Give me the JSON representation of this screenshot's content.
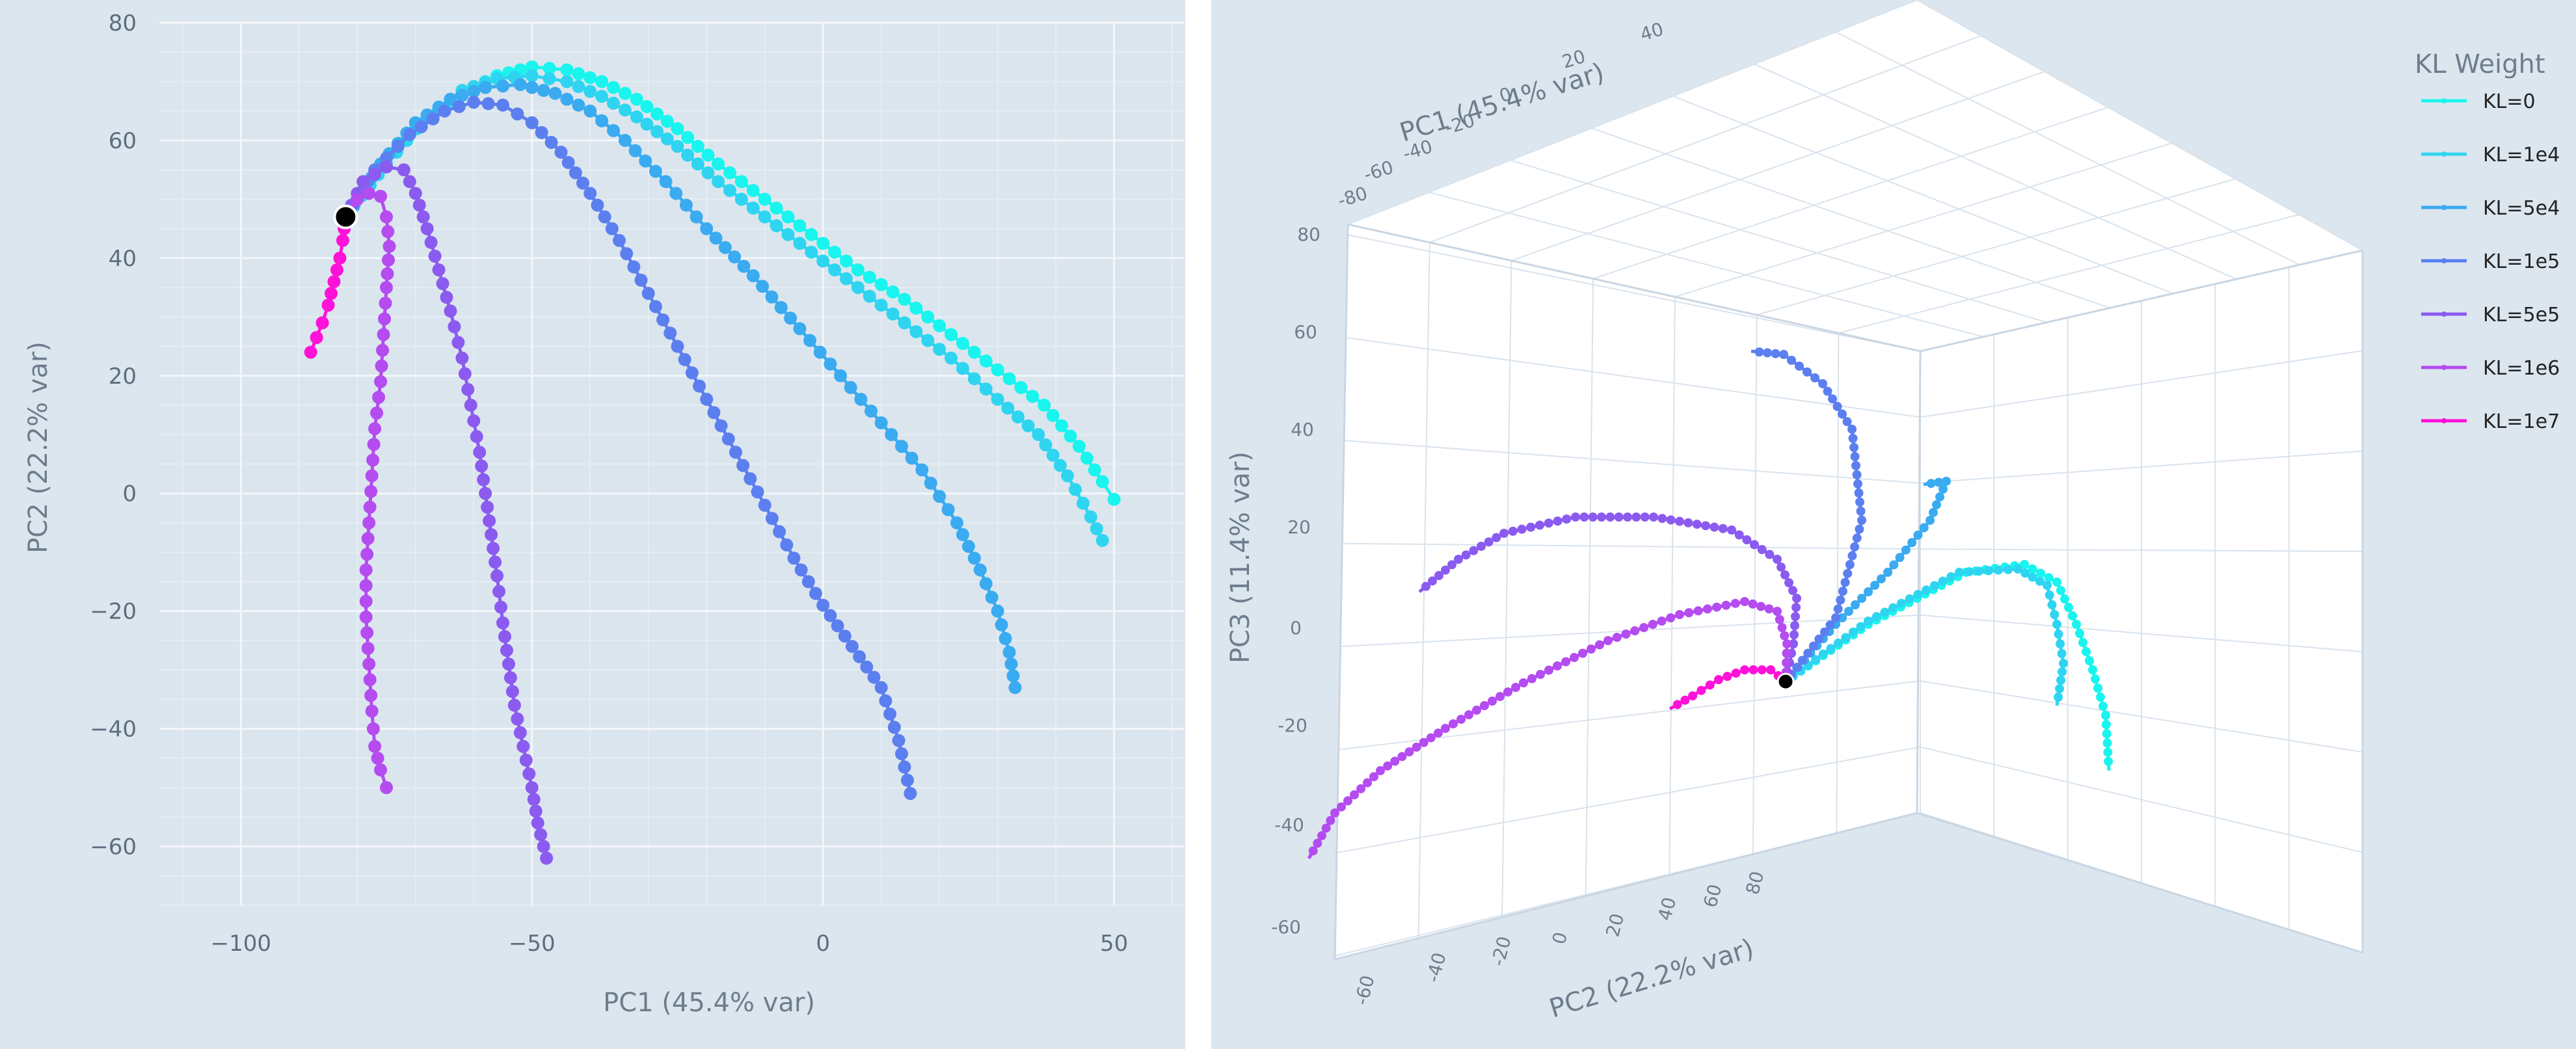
{
  "chart_data": [
    {
      "type": "line",
      "title": "",
      "xlabel": "PC1 (45.4% var)",
      "ylabel": "PC2 (22.2% var)",
      "xlim": [
        -114,
        62
      ],
      "ylim": [
        -70,
        80
      ],
      "xticks": [
        -100,
        -50,
        0,
        50
      ],
      "yticks": [
        80,
        60,
        40,
        20,
        0,
        -20,
        -40,
        -60
      ],
      "grid": true,
      "legend": "none",
      "start_point": {
        "x": -82,
        "y": 47
      },
      "series": [
        {
          "name": "KL=0",
          "color": "#19f5ee",
          "points": [
            [
              -82,
              47
            ],
            [
              -75,
              56
            ],
            [
              -68,
              64
            ],
            [
              -62,
              68
            ],
            [
              -56,
              71
            ],
            [
              -50,
              72.5
            ],
            [
              -44,
              72
            ],
            [
              -38,
              70
            ],
            [
              -32,
              67
            ],
            [
              -25,
              62
            ],
            [
              -18,
              56
            ],
            [
              -10,
              50
            ],
            [
              -2,
              44
            ],
            [
              6,
              38
            ],
            [
              14,
              33
            ],
            [
              22,
              27
            ],
            [
              30,
              21
            ],
            [
              38,
              15
            ],
            [
              44,
              8
            ],
            [
              48,
              2
            ],
            [
              50,
              -1
            ]
          ]
        },
        {
          "name": "KL=1e4",
          "color": "#2fd5f0",
          "points": [
            [
              -82,
              47
            ],
            [
              -75,
              56
            ],
            [
              -68,
              64
            ],
            [
              -62,
              68.5
            ],
            [
              -56,
              70.5
            ],
            [
              -50,
              71
            ],
            [
              -44,
              70
            ],
            [
              -38,
              67.5
            ],
            [
              -32,
              64
            ],
            [
              -25,
              59
            ],
            [
              -18,
              53
            ],
            [
              -10,
              47
            ],
            [
              -2,
              41
            ],
            [
              6,
              35
            ],
            [
              14,
              29
            ],
            [
              22,
              23
            ],
            [
              30,
              16
            ],
            [
              37,
              10
            ],
            [
              42,
              3
            ],
            [
              46,
              -4
            ],
            [
              48,
              -8
            ]
          ]
        },
        {
          "name": "KL=5e4",
          "color": "#3aabf0",
          "points": [
            [
              -82,
              47
            ],
            [
              -76,
              56
            ],
            [
              -70,
              63
            ],
            [
              -64,
              67
            ],
            [
              -58,
              69
            ],
            [
              -52,
              69.5
            ],
            [
              -46,
              68
            ],
            [
              -40,
              65
            ],
            [
              -34,
              60
            ],
            [
              -27,
              53
            ],
            [
              -20,
              45
            ],
            [
              -12,
              37
            ],
            [
              -4,
              28
            ],
            [
              3,
              20
            ],
            [
              10,
              12
            ],
            [
              17,
              4
            ],
            [
              23,
              -5
            ],
            [
              27,
              -13
            ],
            [
              30,
              -20
            ],
            [
              32,
              -27
            ],
            [
              33,
              -33
            ]
          ]
        },
        {
          "name": "KL=1e5",
          "color": "#5c7ff0",
          "points": [
            [
              -82,
              47
            ],
            [
              -77,
              55
            ],
            [
              -71,
              61
            ],
            [
              -65,
              65
            ],
            [
              -60,
              66.5
            ],
            [
              -55,
              66
            ],
            [
              -50,
              63
            ],
            [
              -45,
              58
            ],
            [
              -40,
              51
            ],
            [
              -35,
              43
            ],
            [
              -30,
              34
            ],
            [
              -25,
              25
            ],
            [
              -20,
              16
            ],
            [
              -15,
              7
            ],
            [
              -10,
              -2
            ],
            [
              -5,
              -11
            ],
            [
              0,
              -19
            ],
            [
              5,
              -26
            ],
            [
              10,
              -33
            ],
            [
              13,
              -42
            ],
            [
              15,
              -51
            ]
          ]
        },
        {
          "name": "KL=5e5",
          "color": "#8b5bf0",
          "points": [
            [
              -82,
              47
            ],
            [
              -79,
              53
            ],
            [
              -75,
              55.5
            ],
            [
              -72,
              55
            ],
            [
              -70,
              51
            ],
            [
              -68,
              45
            ],
            [
              -66,
              38
            ],
            [
              -64,
              31
            ],
            [
              -62,
              23
            ],
            [
              -60.5,
              15
            ],
            [
              -59,
              7
            ],
            [
              -58,
              0
            ],
            [
              -57,
              -7
            ],
            [
              -56,
              -14
            ],
            [
              -55,
              -22
            ],
            [
              -54,
              -29
            ],
            [
              -53,
              -36
            ],
            [
              -51.5,
              -43
            ],
            [
              -50,
              -50
            ],
            [
              -49,
              -56
            ],
            [
              -47.5,
              -62
            ]
          ]
        },
        {
          "name": "KL=1e6",
          "color": "#b44cf0",
          "points": [
            [
              -82,
              47
            ],
            [
              -80,
              50
            ],
            [
              -78,
              51
            ],
            [
              -76,
              50.5
            ],
            [
              -75,
              47
            ],
            [
              -74.5,
              42
            ],
            [
              -75,
              35
            ],
            [
              -75.5,
              27
            ],
            [
              -76,
              19
            ],
            [
              -77,
              11
            ],
            [
              -77.5,
              3
            ],
            [
              -78,
              -5
            ],
            [
              -78.5,
              -13
            ],
            [
              -78.5,
              -21
            ],
            [
              -78,
              -29
            ],
            [
              -77.5,
              -37
            ],
            [
              -77,
              -43
            ],
            [
              -76,
              -47
            ],
            [
              -75,
              -50
            ]
          ]
        },
        {
          "name": "KL=1e7",
          "color": "#ff12d8",
          "points": [
            [
              -82,
              47
            ],
            [
              -82.5,
              43
            ],
            [
              -83,
              40
            ],
            [
              -84,
              36
            ],
            [
              -85,
              32
            ],
            [
              -86,
              29
            ],
            [
              -87,
              26.5
            ],
            [
              -88,
              24
            ]
          ]
        }
      ]
    },
    {
      "type": "scatter3d",
      "title": "",
      "xlabel": "PC1 (45.4% var)",
      "ylabel": "PC2 (22.2% var)",
      "zlabel": "PC3 (11.4% var)",
      "xticks": [
        "-80",
        "-60",
        "-40",
        "-20",
        "0",
        "20",
        "40"
      ],
      "yticks": [
        "-60",
        "-40",
        "-20",
        "0",
        "20",
        "40",
        "60",
        "80"
      ],
      "zticks": [
        "80",
        "60",
        "40",
        "20",
        "0",
        "-20",
        "-40",
        "-60"
      ],
      "legend": "top-right",
      "legend_title": "KL Weight",
      "legend_items": [
        "KL=0",
        "KL=1e4",
        "KL=5e4",
        "KL=1e5",
        "KL=5e5",
        "KL=1e6",
        "KL=1e7"
      ],
      "colors": [
        "#19f5ee",
        "#2fd5f0",
        "#3aabf0",
        "#5c7ff0",
        "#8b5bf0",
        "#b44cf0",
        "#ff12d8"
      ]
    }
  ]
}
